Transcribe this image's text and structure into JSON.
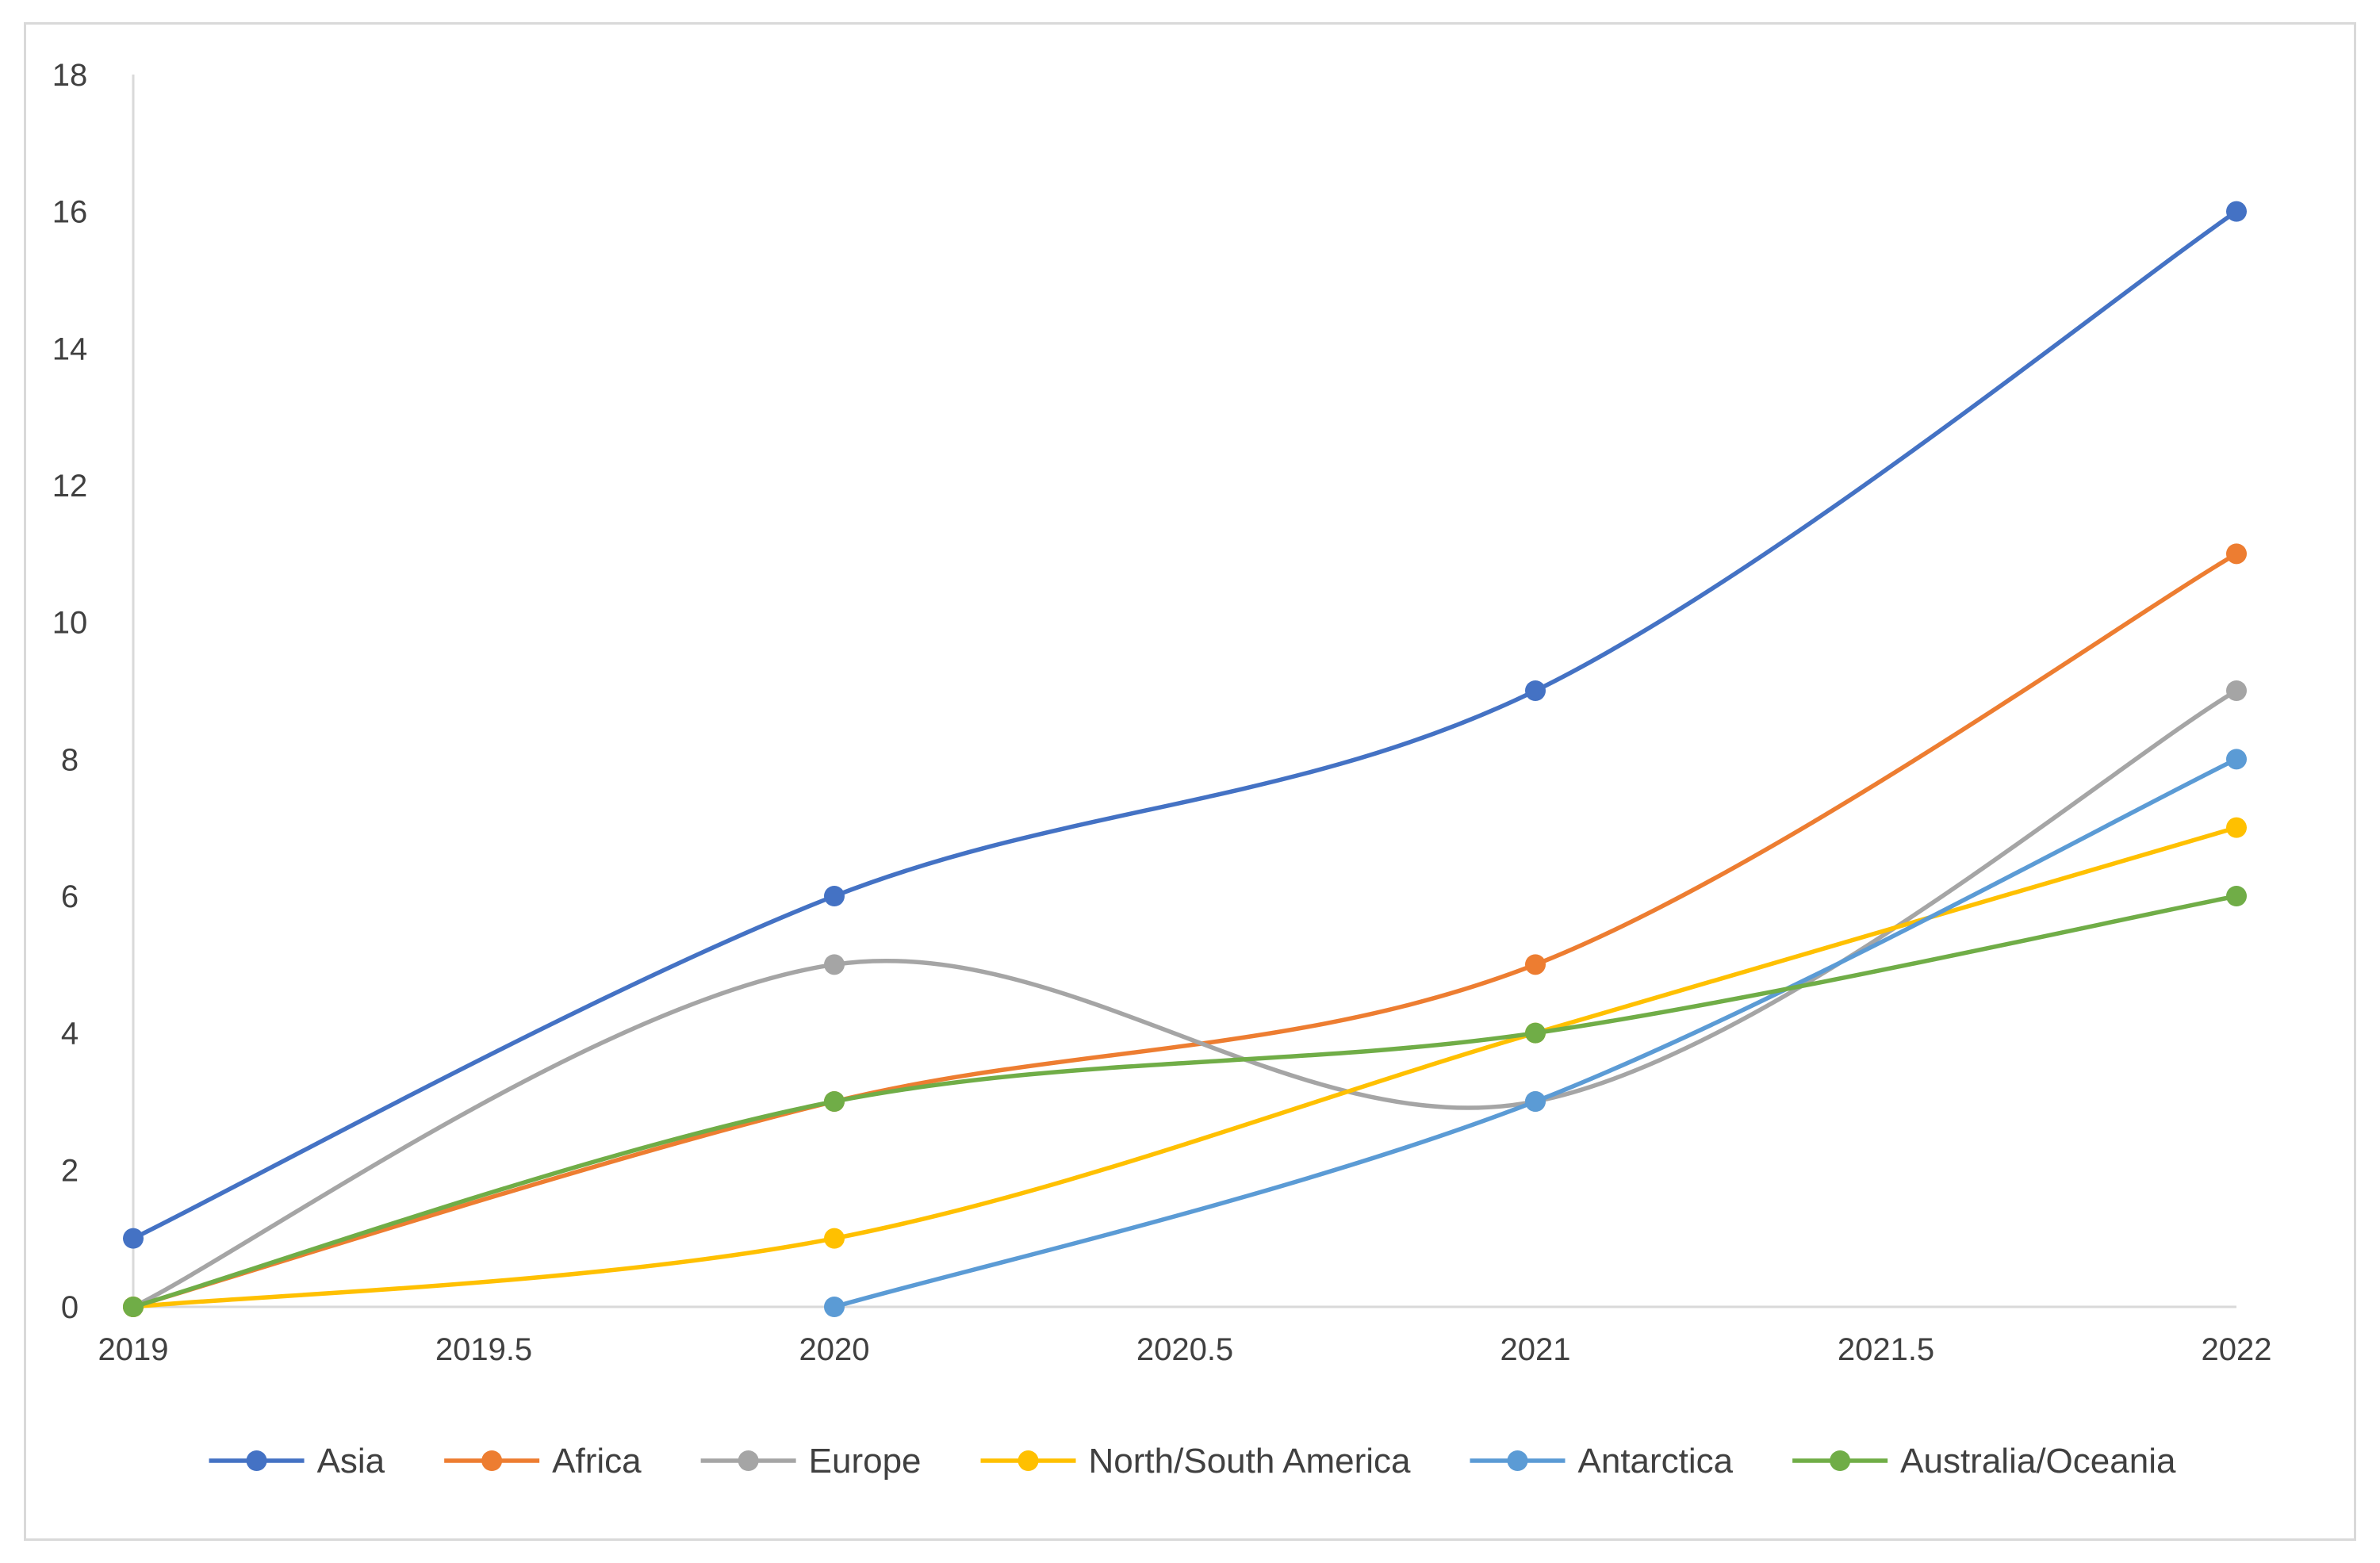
{
  "chart_data": {
    "type": "line",
    "smooth": true,
    "title": "",
    "xlabel": "",
    "ylabel": "",
    "xlim": [
      2019,
      2022
    ],
    "ylim": [
      0,
      18
    ],
    "x_ticks": [
      "2019",
      "2019.5",
      "2020",
      "2020.5",
      "2021",
      "2021.5",
      "2022"
    ],
    "y_ticks": [
      "0",
      "2",
      "4",
      "6",
      "8",
      "10",
      "12",
      "14",
      "16",
      "18"
    ],
    "grid": false,
    "legend_position": "bottom",
    "series": [
      {
        "name": "Asia",
        "color": "#4472C4",
        "points": [
          {
            "x": 2019,
            "y": 1
          },
          {
            "x": 2020,
            "y": 6
          },
          {
            "x": 2021,
            "y": 9
          },
          {
            "x": 2022,
            "y": 16
          }
        ]
      },
      {
        "name": "Africa",
        "color": "#ED7D31",
        "points": [
          {
            "x": 2019,
            "y": 0
          },
          {
            "x": 2020,
            "y": 3
          },
          {
            "x": 2021,
            "y": 5
          },
          {
            "x": 2022,
            "y": 11
          }
        ]
      },
      {
        "name": "Europe",
        "color": "#A5A5A5",
        "points": [
          {
            "x": 2019,
            "y": 0
          },
          {
            "x": 2020,
            "y": 5
          },
          {
            "x": 2021,
            "y": 3
          },
          {
            "x": 2022,
            "y": 9
          }
        ]
      },
      {
        "name": "North/South America",
        "color": "#FFC000",
        "points": [
          {
            "x": 2019,
            "y": 0
          },
          {
            "x": 2020,
            "y": 1
          },
          {
            "x": 2021,
            "y": 4
          },
          {
            "x": 2022,
            "y": 7
          }
        ]
      },
      {
        "name": "Antarctica",
        "color": "#5B9BD5",
        "points": [
          {
            "x": 2020,
            "y": 0
          },
          {
            "x": 2021,
            "y": 3
          },
          {
            "x": 2022,
            "y": 8
          }
        ]
      },
      {
        "name": "Australia/Oceania",
        "color": "#70AD47",
        "points": [
          {
            "x": 2019,
            "y": 0
          },
          {
            "x": 2020,
            "y": 3
          },
          {
            "x": 2021,
            "y": 4
          },
          {
            "x": 2022,
            "y": 6
          }
        ]
      }
    ]
  }
}
